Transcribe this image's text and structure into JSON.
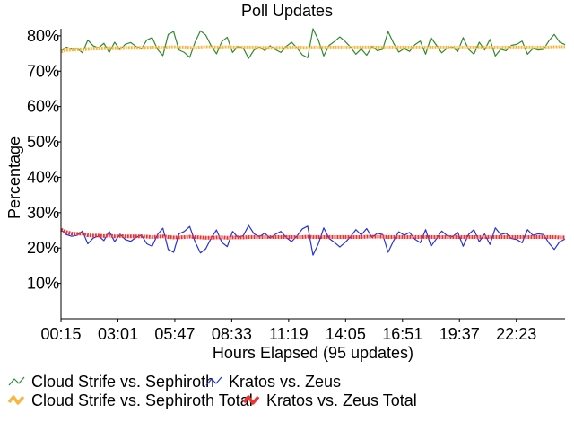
{
  "chart_data": {
    "type": "line",
    "title": "Poll Updates",
    "xlabel": "Hours Elapsed (95 updates)",
    "ylabel": "Percentage",
    "x_unit": "hours",
    "x_range": [
      0.25,
      24.75
    ],
    "ylim": [
      0,
      82
    ],
    "y_ticks": [
      10,
      20,
      30,
      40,
      50,
      60,
      70,
      80
    ],
    "y_tick_labels": [
      "10%",
      "20%",
      "30%",
      "40%",
      "50%",
      "60%",
      "70%",
      "80%"
    ],
    "x_ticks": [
      0.25,
      3.0167,
      5.7833,
      8.55,
      11.3167,
      14.0833,
      16.85,
      19.6167,
      22.3833
    ],
    "x_tick_labels": [
      "00:15",
      "03:01",
      "05:47",
      "08:33",
      "11:19",
      "14:05",
      "16:51",
      "19:37",
      "22:23"
    ],
    "grid": false,
    "legend_position": "bottom",
    "series": [
      {
        "name": "Cloud Strife vs. Sephiroth",
        "color": "#2e8b2e",
        "line_width": 1.2,
        "style": "thin",
        "values": [
          75.6,
          76.8,
          76.2,
          76.5,
          75.2,
          78.8,
          77.2,
          76.6,
          77.9,
          75.3,
          78.2,
          76.1,
          77.6,
          78.1,
          77.0,
          76.3,
          78.8,
          79.5,
          76.2,
          74.4,
          80.4,
          81.2,
          76.0,
          75.3,
          73.9,
          78.2,
          81.4,
          80.2,
          77.2,
          74.9,
          78.4,
          79.6,
          75.3,
          77.0,
          76.5,
          73.6,
          76.0,
          76.8,
          75.8,
          77.2,
          76.1,
          75.3,
          77.0,
          78.2,
          76.6,
          74.6,
          73.8,
          82.0,
          78.8,
          74.3,
          77.3,
          78.4,
          79.7,
          78.4,
          76.8,
          74.8,
          76.3,
          74.5,
          77.0,
          75.8,
          76.2,
          81.2,
          78.0,
          75.4,
          76.4,
          75.6,
          77.5,
          78.5,
          74.8,
          79.5,
          77.4,
          75.2,
          76.5,
          76.8,
          75.6,
          79.5,
          76.2,
          74.8,
          78.2,
          76.0,
          79.0,
          74.3,
          76.2,
          75.8,
          77.3,
          77.6,
          78.5,
          74.8,
          76.4,
          76.0,
          76.2,
          78.6,
          80.4,
          78.2,
          77.5
        ]
      },
      {
        "name": "Kratos vs. Zeus",
        "color": "#2233dd",
        "line_width": 1.2,
        "style": "thin",
        "values": [
          25.2,
          23.8,
          23.3,
          23.6,
          24.8,
          21.2,
          22.8,
          23.4,
          22.1,
          24.7,
          21.8,
          23.9,
          22.4,
          21.9,
          23.0,
          23.7,
          21.2,
          20.5,
          23.8,
          25.6,
          19.6,
          18.8,
          24.0,
          24.7,
          26.1,
          21.8,
          18.6,
          19.8,
          22.8,
          25.1,
          21.6,
          20.4,
          24.7,
          23.0,
          23.5,
          26.4,
          24.0,
          23.2,
          24.2,
          22.8,
          23.9,
          24.7,
          23.0,
          21.8,
          23.4,
          25.4,
          26.2,
          18.0,
          21.2,
          25.7,
          22.7,
          21.6,
          20.3,
          21.6,
          23.2,
          25.2,
          23.7,
          25.5,
          23.0,
          24.2,
          23.8,
          18.8,
          22.0,
          24.6,
          23.6,
          24.4,
          22.5,
          21.5,
          25.2,
          20.5,
          22.6,
          24.8,
          23.5,
          23.2,
          24.4,
          20.5,
          23.8,
          25.2,
          21.8,
          24.0,
          21.0,
          25.7,
          23.8,
          24.2,
          22.7,
          22.4,
          21.5,
          25.2,
          23.6,
          24.0,
          23.8,
          21.4,
          19.6,
          21.8,
          22.5
        ]
      },
      {
        "name": "Cloud Strife vs. Sephiroth Total",
        "color": "#f5b942",
        "line_width": 4,
        "style": "thick",
        "values": [
          75.6,
          76.0,
          76.1,
          76.2,
          76.2,
          76.3,
          76.4,
          76.4,
          76.5,
          76.5,
          76.5,
          76.5,
          76.6,
          76.6,
          76.6,
          76.6,
          76.6,
          76.7,
          76.7,
          76.6,
          76.7,
          76.8,
          76.7,
          76.7,
          76.6,
          76.6,
          76.7,
          76.8,
          76.8,
          76.7,
          76.7,
          76.8,
          76.7,
          76.7,
          76.7,
          76.7,
          76.7,
          76.6,
          76.6,
          76.6,
          76.6,
          76.6,
          76.6,
          76.7,
          76.7,
          76.6,
          76.6,
          76.7,
          76.7,
          76.7,
          76.7,
          76.7,
          76.7,
          76.7,
          76.7,
          76.7,
          76.7,
          76.7,
          76.7,
          76.7,
          76.7,
          76.7,
          76.7,
          76.7,
          76.7,
          76.7,
          76.7,
          76.7,
          76.7,
          76.7,
          76.7,
          76.7,
          76.7,
          76.7,
          76.7,
          76.7,
          76.7,
          76.7,
          76.7,
          76.7,
          76.7,
          76.7,
          76.7,
          76.7,
          76.7,
          76.7,
          76.7,
          76.7,
          76.7,
          76.7,
          76.7,
          76.7,
          76.8,
          76.8,
          76.8
        ]
      },
      {
        "name": "Kratos vs. Zeus Total",
        "color": "#ee3333",
        "line_width": 4,
        "style": "thick",
        "values": [
          25.2,
          24.5,
          24.1,
          24.0,
          24.1,
          23.6,
          23.5,
          23.5,
          23.4,
          23.5,
          23.3,
          23.4,
          23.3,
          23.3,
          23.3,
          23.3,
          23.2,
          23.1,
          23.2,
          23.3,
          23.1,
          23.0,
          23.0,
          23.1,
          23.2,
          23.1,
          23.0,
          22.9,
          22.9,
          23.0,
          23.0,
          22.9,
          23.0,
          23.0,
          23.0,
          23.1,
          23.1,
          23.1,
          23.1,
          23.1,
          23.1,
          23.1,
          23.1,
          23.1,
          23.1,
          23.1,
          23.2,
          23.1,
          23.1,
          23.1,
          23.1,
          23.1,
          23.1,
          23.1,
          23.1,
          23.1,
          23.1,
          23.2,
          23.2,
          23.2,
          23.2,
          23.1,
          23.1,
          23.1,
          23.1,
          23.1,
          23.1,
          23.1,
          23.1,
          23.1,
          23.1,
          23.1,
          23.1,
          23.1,
          23.1,
          23.1,
          23.1,
          23.1,
          23.1,
          23.1,
          23.1,
          23.1,
          23.1,
          23.1,
          23.1,
          23.1,
          23.1,
          23.1,
          23.1,
          23.1,
          23.1,
          23.1,
          23.1,
          23.0,
          23.0
        ]
      }
    ],
    "legend_rows": [
      [
        "Cloud Strife vs. Sephiroth",
        "Kratos vs. Zeus"
      ],
      [
        "Cloud Strife vs. Sephiroth Total",
        "Kratos vs. Zeus Total"
      ]
    ]
  }
}
